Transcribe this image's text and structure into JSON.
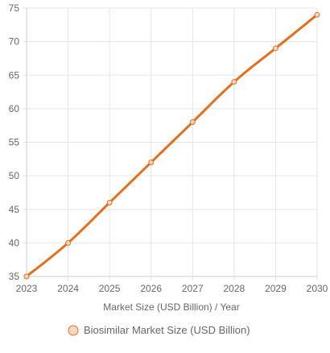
{
  "chart_data": {
    "type": "line",
    "title": "",
    "xlabel": "Market Size (USD Billion) / Year",
    "ylabel": "",
    "categories": [
      "2023",
      "2024",
      "2025",
      "2026",
      "2027",
      "2028",
      "2029",
      "2030"
    ],
    "ylim": [
      35,
      75
    ],
    "yticks": [
      35,
      40,
      45,
      50,
      55,
      60,
      65,
      70,
      75
    ],
    "grid": true,
    "legend_position": "bottom",
    "series": [
      {
        "name": "Biosimilar Market Size (USD Billion)",
        "values": [
          35,
          40,
          46,
          52,
          58,
          64,
          69,
          74
        ],
        "color": "#e07120",
        "point_fill": "#f7d7c2"
      }
    ]
  }
}
